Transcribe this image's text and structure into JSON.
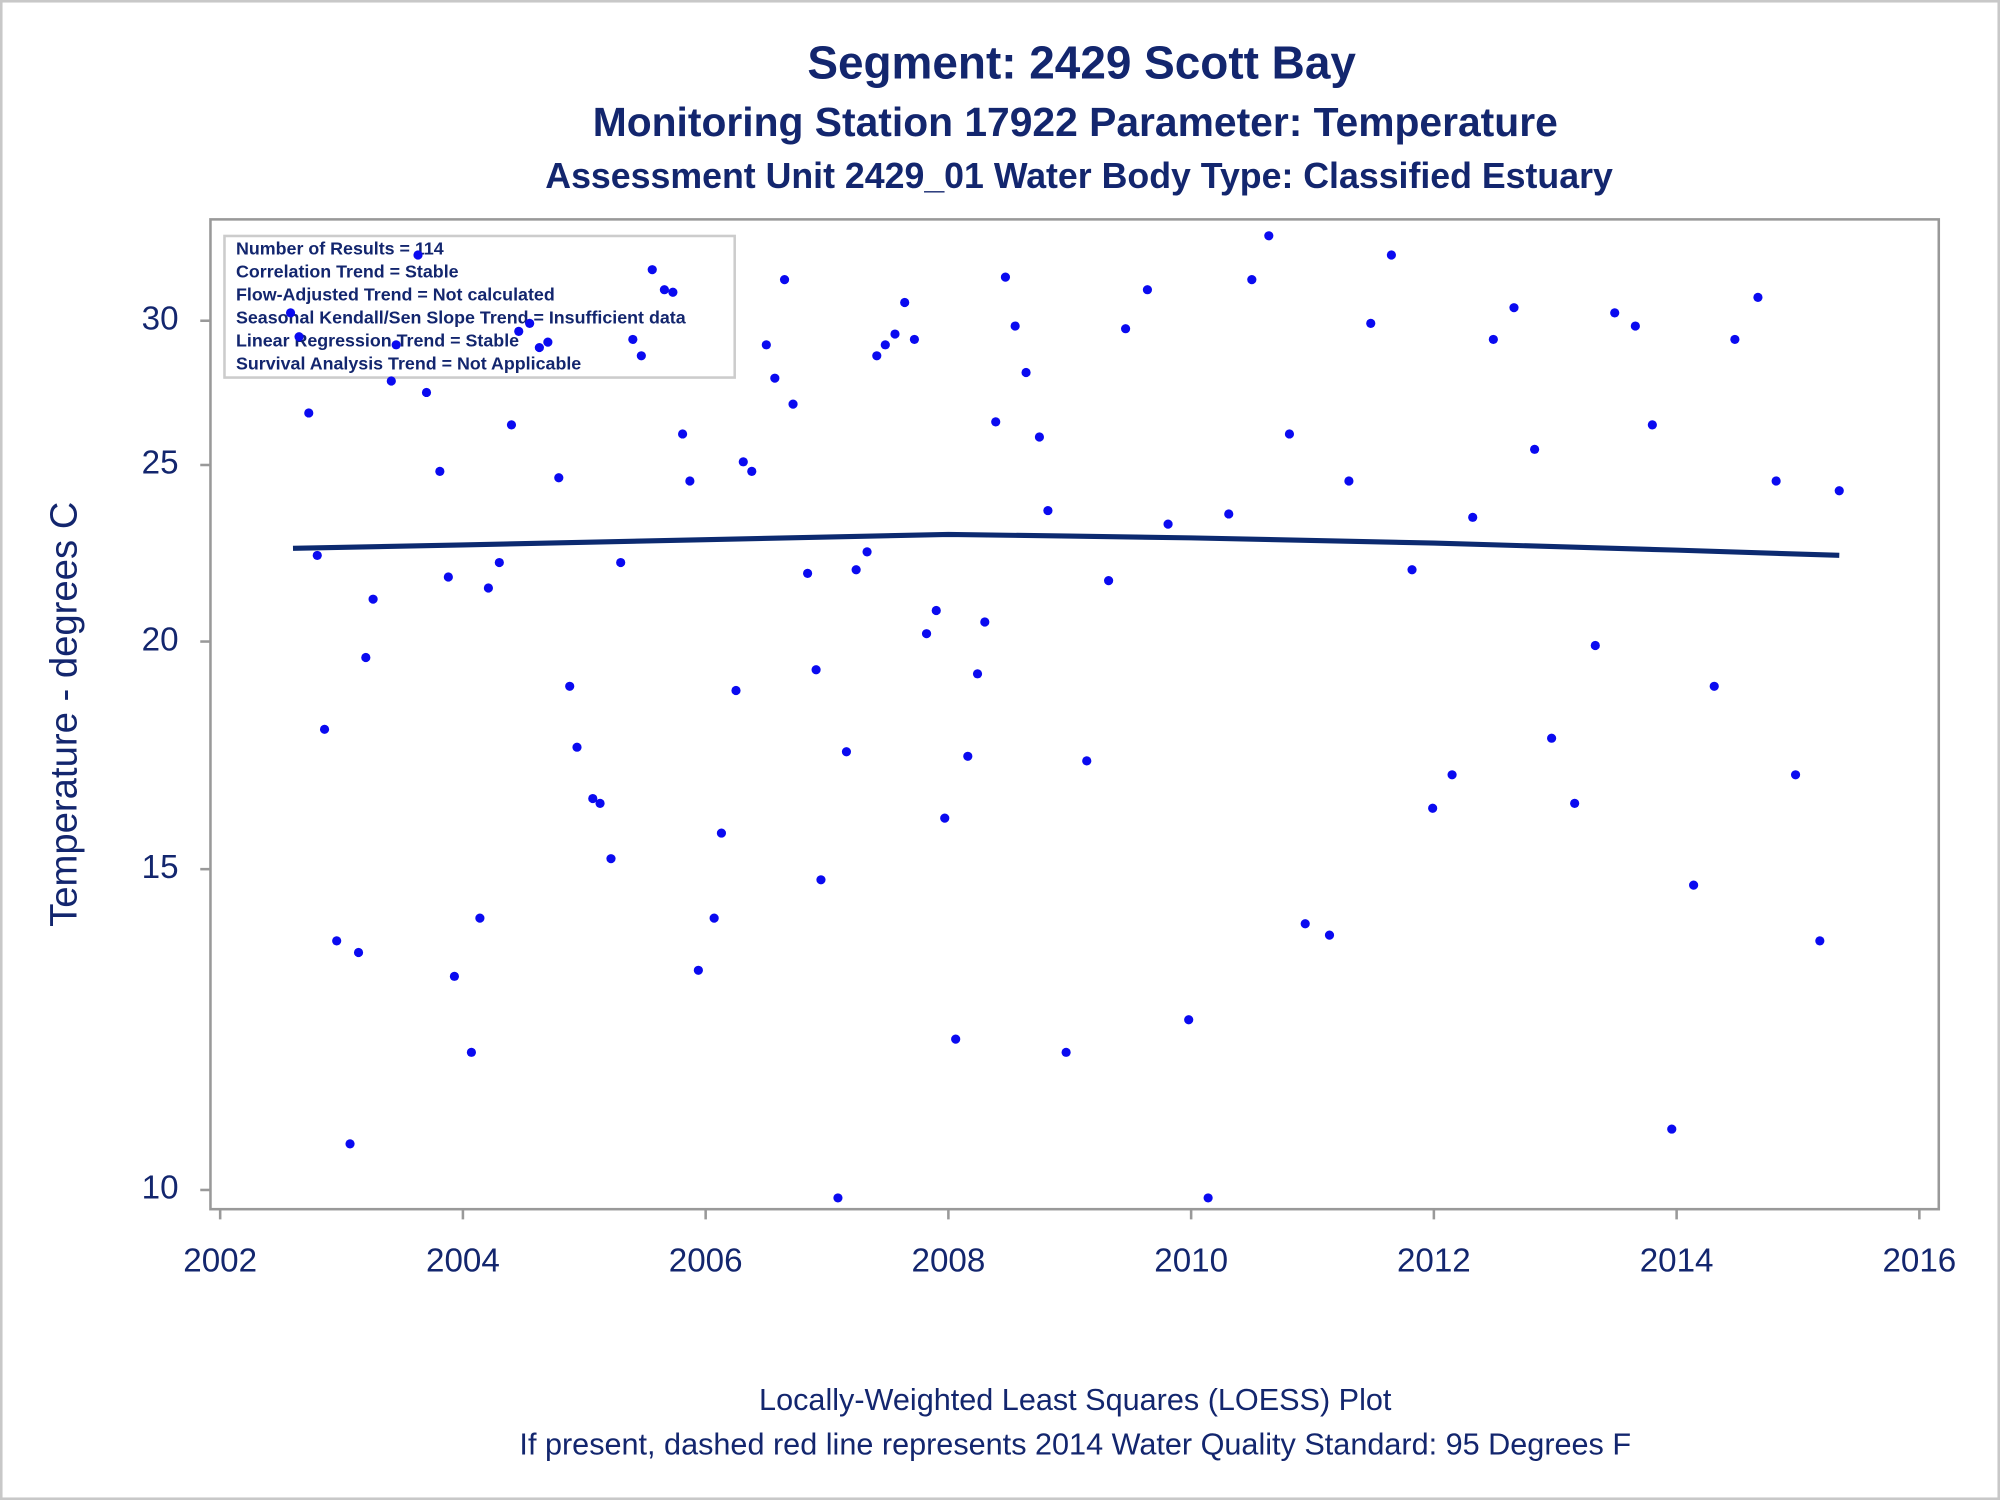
{
  "chart_data": {
    "type": "scatter",
    "title": "Segment: 2429  Scott Bay",
    "subtitle": "Monitoring Station 17922 Parameter: Temperature",
    "subtitle2": "Assessment Unit 2429_01   Water Body Type: Classified Estuary",
    "y_label": "Temperature - degrees C",
    "annotations": [
      "Number of Results = 114",
      "Correlation Trend = Stable",
      "Flow-Adjusted Trend = Not calculated",
      "Seasonal Kendall/Sen Slope Trend = Insufficient data",
      "Linear Regression Trend = Stable",
      "Survival Analysis Trend = Not Applicable"
    ],
    "footnotes": [
      "Locally-Weighted Least Squares (LOESS) Plot",
      "If present, dashed red line represents 2014 Water Quality Standard: 95   Degrees F"
    ],
    "color": "#0a0af0",
    "log_y": true,
    "xlim": [
      2001.92,
      2016.16
    ],
    "xticks": [
      2002,
      2004,
      2006,
      2008,
      2010,
      2012,
      2014,
      2016
    ],
    "ylim": [
      9.76,
      34.1
    ],
    "yticks": [
      10,
      15,
      20,
      25,
      30
    ],
    "x": [
      2002.58,
      2002.65,
      2002.73,
      2002.8,
      2002.86,
      2002.96,
      2003.07,
      2003.14,
      2003.2,
      2003.26,
      2003.41,
      2003.45,
      2003.63,
      2003.7,
      2003.81,
      2003.88,
      2003.93,
      2004.07,
      2004.14,
      2004.21,
      2004.3,
      2004.4,
      2004.46,
      2004.55,
      2004.63,
      2004.7,
      2004.79,
      2004.88,
      2004.94,
      2005.07,
      2005.13,
      2005.22,
      2005.3,
      2005.4,
      2005.47,
      2005.56,
      2005.66,
      2005.73,
      2005.81,
      2005.87,
      2005.94,
      2006.07,
      2006.13,
      2006.25,
      2006.31,
      2006.38,
      2006.5,
      2006.57,
      2006.65,
      2006.72,
      2006.84,
      2006.91,
      2006.95,
      2007.09,
      2007.16,
      2007.24,
      2007.33,
      2007.41,
      2007.48,
      2007.56,
      2007.64,
      2007.72,
      2007.82,
      2007.9,
      2007.97,
      2008.06,
      2008.16,
      2008.24,
      2008.3,
      2008.39,
      2008.47,
      2008.55,
      2008.64,
      2008.75,
      2008.82,
      2008.97,
      2009.14,
      2009.32,
      2009.46,
      2009.64,
      2009.81,
      2009.98,
      2010.14,
      2010.31,
      2010.5,
      2010.64,
      2010.81,
      2010.94,
      2011.14,
      2011.3,
      2011.48,
      2011.65,
      2011.82,
      2011.99,
      2012.15,
      2012.32,
      2012.49,
      2012.66,
      2012.83,
      2012.97,
      2013.16,
      2013.33,
      2013.49,
      2013.66,
      2013.8,
      2013.96,
      2014.14,
      2014.31,
      2014.48,
      2014.67,
      2014.82,
      2014.98,
      2015.18,
      2015.34
    ],
    "values": [
      30.3,
      29.4,
      26.7,
      22.3,
      17.9,
      13.7,
      10.6,
      13.5,
      19.6,
      21.1,
      27.8,
      29.1,
      32.6,
      27.4,
      24.8,
      21.7,
      13.1,
      11.9,
      14.1,
      21.4,
      22.1,
      26.3,
      29.6,
      29.9,
      29.0,
      29.2,
      24.6,
      18.9,
      17.5,
      16.4,
      16.3,
      15.2,
      22.1,
      29.3,
      28.7,
      32.0,
      31.2,
      31.1,
      26.0,
      24.5,
      13.2,
      14.1,
      15.7,
      18.8,
      25.1,
      24.8,
      29.1,
      27.9,
      31.6,
      27.0,
      21.8,
      19.3,
      14.8,
      9.9,
      17.4,
      21.9,
      22.4,
      28.7,
      29.1,
      29.5,
      30.7,
      29.3,
      20.2,
      20.8,
      16.0,
      12.1,
      17.3,
      19.2,
      20.5,
      26.4,
      31.7,
      29.8,
      28.1,
      25.9,
      23.6,
      11.9,
      17.2,
      21.6,
      29.7,
      31.2,
      23.2,
      12.4,
      9.9,
      23.5,
      31.6,
      33.4,
      26.0,
      14.0,
      13.8,
      24.5,
      29.9,
      32.6,
      21.9,
      16.2,
      16.9,
      23.4,
      29.3,
      30.5,
      25.5,
      17.7,
      16.3,
      19.9,
      30.3,
      29.8,
      26.3,
      10.8,
      14.7,
      18.9,
      29.3,
      30.9,
      24.5,
      16.9,
      13.7,
      24.2
    ],
    "loess": {
      "color": "#0c2a70",
      "x": [
        2002.6,
        2004,
        2006,
        2008,
        2009,
        2010,
        2012,
        2014,
        2015.34
      ],
      "values": [
        22.5,
        22.6,
        22.75,
        22.9,
        22.85,
        22.8,
        22.65,
        22.45,
        22.3
      ]
    }
  }
}
